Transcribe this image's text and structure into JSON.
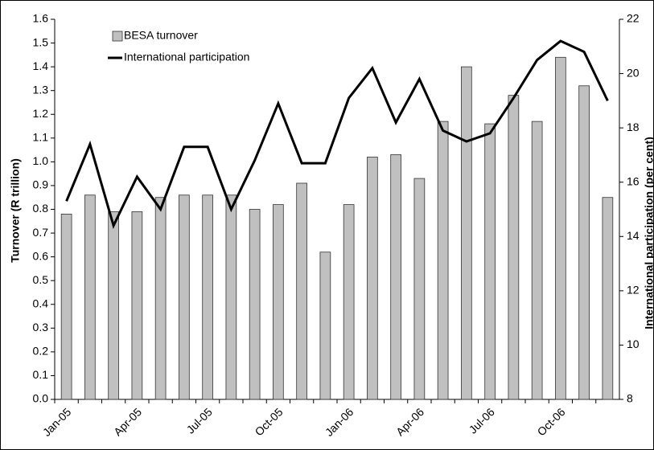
{
  "chart_data": {
    "type": "bar_line",
    "categories": [
      "Jan-05",
      null,
      null,
      "Apr-05",
      null,
      null,
      "Jul-05",
      null,
      null,
      "Oct-05",
      null,
      null,
      "Jan-06",
      null,
      null,
      "Apr-06",
      null,
      null,
      "Jul-06",
      null,
      null,
      "Oct-06",
      null,
      null
    ],
    "series": [
      {
        "name": "BESA turnover",
        "type": "bar",
        "color": "#c0c0c0",
        "values": [
          0.78,
          0.86,
          0.79,
          0.79,
          0.85,
          0.86,
          0.86,
          0.86,
          0.8,
          0.82,
          0.91,
          0.62,
          0.82,
          1.02,
          1.03,
          0.93,
          1.17,
          1.4,
          1.16,
          1.28,
          1.17,
          1.44,
          1.32,
          0.85
        ]
      },
      {
        "name": "International participation",
        "type": "line",
        "axis": "y2",
        "color": "#000000",
        "values": [
          15.3,
          17.4,
          14.4,
          16.2,
          15.0,
          17.3,
          17.3,
          15.0,
          16.8,
          18.9,
          16.7,
          16.7,
          19.1,
          20.2,
          18.2,
          19.8,
          17.9,
          17.5,
          17.8,
          19.1,
          20.5,
          21.2,
          20.8,
          19.0
        ]
      }
    ],
    "y_label": "Turnover (R trillion)",
    "y2_label": "International participation (per cent)",
    "ylim": [
      0,
      1.6
    ],
    "yticks": [
      {
        "value": 0,
        "label": "0.0"
      },
      0.1,
      0.2,
      0.3,
      0.4,
      0.5,
      0.6,
      0.7,
      0.8,
      0.9,
      {
        "value": 1,
        "label": "1.0"
      },
      1.1,
      1.2,
      1.3,
      1.4,
      1.5,
      1.6
    ],
    "y2lim": [
      8,
      22
    ],
    "y2ticks": [
      8,
      10,
      12,
      14,
      16,
      18,
      20,
      22
    ],
    "legend": "top-left"
  }
}
